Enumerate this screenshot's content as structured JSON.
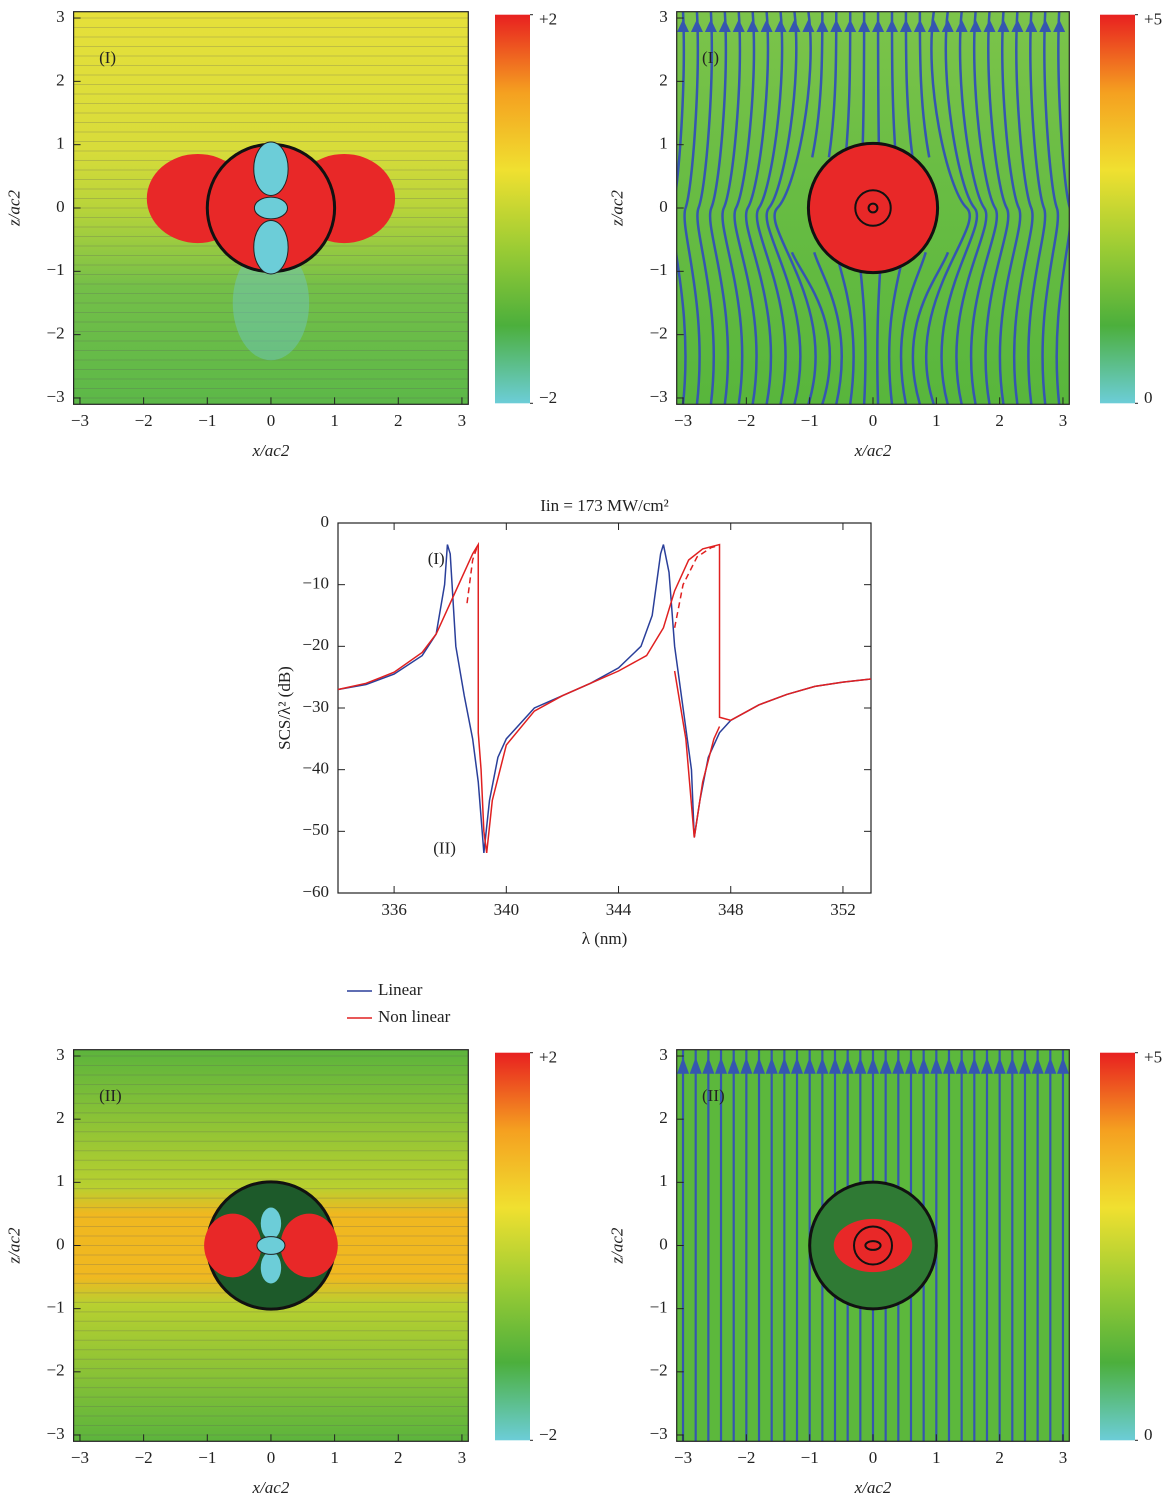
{
  "chart_data": [
    {
      "type": "field-map",
      "panel": "(I)",
      "xlabel": "x/ac2",
      "ylabel": "z/ac2",
      "xlim": [
        -3.1,
        3.1
      ],
      "ylim": [
        -3.1,
        3.1
      ],
      "xticks": [
        {
          "value": -3,
          "label": "−3"
        },
        {
          "value": -2,
          "label": "−2"
        },
        {
          "value": -1,
          "label": "−1"
        },
        0,
        1,
        2,
        3
      ],
      "yticks": [
        {
          "value": -3,
          "label": "−3"
        },
        {
          "value": -2,
          "label": "−2"
        },
        {
          "value": -1,
          "label": "−1"
        },
        0,
        1,
        2,
        3
      ],
      "clim": [
        -2,
        2
      ],
      "cticks": [
        {
          "value": 2,
          "label": "+2"
        },
        {
          "value": -2,
          "label": "−2"
        }
      ],
      "colors": [
        "#6ccdd8",
        "#4caf3c",
        "#9ccc34",
        "#f0e030",
        "#f5a020",
        "#e82020"
      ]
    },
    {
      "type": "field-map",
      "panel": "(I)",
      "xlabel": "x/ac2",
      "ylabel": "z/ac2",
      "xlim": [
        -3.1,
        3.1
      ],
      "ylim": [
        -3.1,
        3.1
      ],
      "xticks": [
        {
          "value": -3,
          "label": "−3"
        },
        {
          "value": -2,
          "label": "−2"
        },
        {
          "value": -1,
          "label": "−1"
        },
        0,
        1,
        2,
        3
      ],
      "yticks": [
        {
          "value": -3,
          "label": "−3"
        },
        {
          "value": -2,
          "label": "−2"
        },
        {
          "value": -1,
          "label": "−1"
        },
        0,
        1,
        2,
        3
      ],
      "clim": [
        0,
        5
      ],
      "cticks": [
        {
          "value": 5,
          "label": "+5"
        },
        0
      ],
      "colors": [
        "#6ccdd8",
        "#4caf3c",
        "#9ccc34",
        "#f0e030",
        "#f5a020",
        "#e82020"
      ]
    },
    {
      "type": "line",
      "title": "Iin = 173 MW/cm²",
      "xlabel": "λ (nm)",
      "ylabel": "SCS/λ² (dB)",
      "xlim": [
        334,
        353
      ],
      "ylim": [
        -60,
        0
      ],
      "xticks": [
        336,
        340,
        344,
        348,
        352
      ],
      "yticks": [
        {
          "value": -60,
          "label": "−60"
        },
        {
          "value": -50,
          "label": "−50"
        },
        {
          "value": -40,
          "label": "−40"
        },
        {
          "value": -30,
          "label": "−30"
        },
        {
          "value": -20,
          "label": "−20"
        },
        {
          "value": -10,
          "label": "−10"
        },
        0
      ],
      "annotations": [
        "(I)",
        "(II)"
      ],
      "legend": "below-left",
      "series": [
        {
          "name": "Linear",
          "color": "#2a3f9a",
          "x": [
            334,
            335,
            336,
            337,
            337.5,
            337.8,
            337.9,
            338.0,
            338.2,
            338.5,
            338.8,
            339.0,
            339.2,
            339.4,
            339.7,
            340,
            341,
            342,
            343,
            344,
            344.8,
            345.2,
            345.5,
            345.6,
            345.8,
            346,
            346.3,
            346.6,
            346.7,
            346.9,
            347.2,
            347.6,
            348,
            349,
            350,
            351,
            352,
            353
          ],
          "values": [
            -27,
            -26.2,
            -24.5,
            -21.5,
            -18,
            -10,
            -3.5,
            -5,
            -20,
            -28,
            -35,
            -42,
            -53.5,
            -45,
            -38,
            -35,
            -30,
            -28,
            -26,
            -23.5,
            -20,
            -15,
            -5,
            -3.5,
            -8,
            -20,
            -30,
            -40,
            -51,
            -45,
            -38,
            -34,
            -32,
            -29.5,
            -27.8,
            -26.5,
            -25.8,
            -25.3
          ]
        },
        {
          "name": "Non linear",
          "color": "#e02020",
          "x": [
            334,
            335,
            336,
            337,
            337.5,
            338,
            338.5,
            338.8,
            339.0,
            339.0,
            339.1,
            339.2,
            339.3,
            339.5,
            340,
            341,
            342,
            343,
            344,
            345,
            345.6,
            346,
            346.5,
            347,
            347.6,
            347.6,
            348,
            349,
            350,
            351,
            352,
            353,
            null,
            346.0,
            346.4,
            346.7,
            347.0,
            347.4,
            347.6
          ],
          "values": [
            -27,
            -26,
            -24.2,
            -21,
            -18,
            -13,
            -8,
            -5,
            -3.5,
            -34,
            -40,
            -50,
            -53.5,
            -45,
            -36,
            -30.5,
            -28,
            -26,
            -24,
            -21.5,
            -17,
            -11,
            -6,
            -4.2,
            -3.5,
            -31.5,
            -32,
            -29.5,
            -27.8,
            -26.5,
            -25.8,
            -25.3,
            null,
            -24,
            -35,
            -51,
            -42,
            -35,
            -33
          ]
        },
        {
          "color": "#e02020",
          "dash": true,
          "x": [
            338.6,
            338.8,
            338.95,
            null,
            346,
            346.3,
            346.8,
            347.3,
            347.6
          ],
          "values": [
            -13,
            -6,
            -4,
            null,
            -17,
            -10,
            -5.5,
            -4,
            -3.6
          ]
        }
      ]
    },
    {
      "type": "field-map",
      "panel": "(II)",
      "xlabel": "x/ac2",
      "ylabel": "z/ac2",
      "xlim": [
        -3.1,
        3.1
      ],
      "ylim": [
        -3.1,
        3.1
      ],
      "xticks": [
        {
          "value": -3,
          "label": "−3"
        },
        {
          "value": -2,
          "label": "−2"
        },
        {
          "value": -1,
          "label": "−1"
        },
        0,
        1,
        2,
        3
      ],
      "yticks": [
        {
          "value": -3,
          "label": "−3"
        },
        {
          "value": -2,
          "label": "−2"
        },
        {
          "value": -1,
          "label": "−1"
        },
        0,
        1,
        2,
        3
      ],
      "clim": [
        -2,
        2
      ],
      "cticks": [
        {
          "value": 2,
          "label": "+2"
        },
        {
          "value": -2,
          "label": "−2"
        }
      ],
      "colors": [
        "#6ccdd8",
        "#4caf3c",
        "#9ccc34",
        "#f0e030",
        "#f5a020",
        "#e82020"
      ]
    },
    {
      "type": "field-map",
      "panel": "(II)",
      "xlabel": "x/ac2",
      "ylabel": "z/ac2",
      "xlim": [
        -3.1,
        3.1
      ],
      "ylim": [
        -3.1,
        3.1
      ],
      "xticks": [
        {
          "value": -3,
          "label": "−3"
        },
        {
          "value": -2,
          "label": "−2"
        },
        {
          "value": -1,
          "label": "−1"
        },
        0,
        1,
        2,
        3
      ],
      "yticks": [
        {
          "value": -3,
          "label": "−3"
        },
        {
          "value": -2,
          "label": "−2"
        },
        {
          "value": -1,
          "label": "−1"
        },
        0,
        1,
        2,
        3
      ],
      "clim": [
        0,
        5
      ],
      "cticks": [
        {
          "value": 5,
          "label": "+5"
        },
        0
      ],
      "colors": [
        "#6ccdd8",
        "#4caf3c",
        "#9ccc34",
        "#f0e030",
        "#f5a020",
        "#e82020"
      ]
    }
  ]
}
